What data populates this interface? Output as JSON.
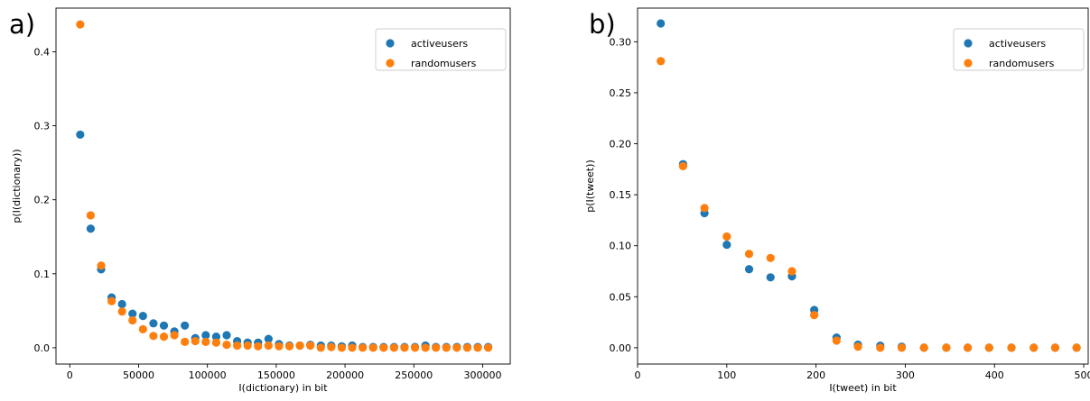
{
  "chart_data": [
    {
      "type": "scatter",
      "panel_label": "a)",
      "xlabel": "I(dictionary) in bit",
      "ylabel": "p(I(dictionary))",
      "xlim": [
        -10000,
        320000
      ],
      "ylim": [
        -0.022,
        0.459
      ],
      "xticks": [
        0,
        50000,
        100000,
        150000,
        200000,
        250000,
        300000
      ],
      "xtick_labels": [
        "0",
        "50000",
        "100000",
        "150000",
        "200000",
        "250000",
        "300000"
      ],
      "yticks": [
        0.0,
        0.1,
        0.2,
        0.3,
        0.4
      ],
      "ytick_labels": [
        "0.0",
        "0.1",
        "0.2",
        "0.3",
        "0.4"
      ],
      "legend_position": "top-right",
      "grid": false,
      "series": [
        {
          "name": "activeusers",
          "color": "#1f77b4",
          "points": [
            [
              7600,
              0.288
            ],
            [
              15200,
              0.161
            ],
            [
              22800,
              0.106
            ],
            [
              30400,
              0.068
            ],
            [
              38000,
              0.059
            ],
            [
              45600,
              0.046
            ],
            [
              53200,
              0.043
            ],
            [
              60800,
              0.033
            ],
            [
              68400,
              0.03
            ],
            [
              76000,
              0.022
            ],
            [
              83600,
              0.03
            ],
            [
              91200,
              0.013
            ],
            [
              98800,
              0.017
            ],
            [
              106400,
              0.015
            ],
            [
              114000,
              0.017
            ],
            [
              121600,
              0.009
            ],
            [
              129200,
              0.007
            ],
            [
              136800,
              0.007
            ],
            [
              144400,
              0.012
            ],
            [
              152000,
              0.005
            ],
            [
              159600,
              0.003
            ],
            [
              167200,
              0.003
            ],
            [
              174800,
              0.004
            ],
            [
              182400,
              0.003
            ],
            [
              190000,
              0.003
            ],
            [
              197600,
              0.002
            ],
            [
              205200,
              0.003
            ],
            [
              212800,
              0.001
            ],
            [
              220400,
              0.001
            ],
            [
              228000,
              0.001
            ],
            [
              235600,
              0.001
            ],
            [
              243200,
              0.001
            ],
            [
              250800,
              0.001
            ],
            [
              258400,
              0.003
            ],
            [
              266000,
              0.001
            ],
            [
              273600,
              0.001
            ],
            [
              281200,
              0.001
            ],
            [
              288800,
              0.001
            ],
            [
              296400,
              0.001
            ],
            [
              304000,
              0.001
            ]
          ]
        },
        {
          "name": "randomusers",
          "color": "#ff7f0e",
          "points": [
            [
              7600,
              0.437
            ],
            [
              15200,
              0.179
            ],
            [
              22800,
              0.111
            ],
            [
              30400,
              0.063
            ],
            [
              38000,
              0.049
            ],
            [
              45600,
              0.037
            ],
            [
              53200,
              0.025
            ],
            [
              60800,
              0.016
            ],
            [
              68400,
              0.015
            ],
            [
              76000,
              0.017
            ],
            [
              83600,
              0.008
            ],
            [
              91200,
              0.009
            ],
            [
              98800,
              0.008
            ],
            [
              106400,
              0.007
            ],
            [
              114000,
              0.004
            ],
            [
              121600,
              0.003
            ],
            [
              129200,
              0.003
            ],
            [
              136800,
              0.002
            ],
            [
              144400,
              0.003
            ],
            [
              152000,
              0.002
            ],
            [
              159600,
              0.002
            ],
            [
              167200,
              0.003
            ],
            [
              174800,
              0.003
            ],
            [
              182400,
              0.0
            ],
            [
              190000,
              0.001
            ],
            [
              197600,
              0.0
            ],
            [
              205200,
              0.0
            ],
            [
              212800,
              0.0
            ],
            [
              220400,
              0.0
            ],
            [
              228000,
              0.0
            ],
            [
              235600,
              0.0
            ],
            [
              243200,
              0.0
            ],
            [
              250800,
              0.0
            ],
            [
              258400,
              0.0
            ],
            [
              266000,
              0.0
            ],
            [
              273600,
              0.0
            ],
            [
              281200,
              0.0
            ],
            [
              288800,
              0.0
            ],
            [
              296400,
              0.0
            ],
            [
              304000,
              0.0
            ]
          ]
        }
      ]
    },
    {
      "type": "scatter",
      "panel_label": "b)",
      "xlabel": "I(tweet) in bit",
      "ylabel": "p(I(tweet))",
      "xlim": [
        0,
        505
      ],
      "ylim": [
        -0.016,
        0.333
      ],
      "xticks": [
        0,
        100,
        200,
        300,
        400,
        500
      ],
      "xtick_labels": [
        "0",
        "100",
        "200",
        "300",
        "400",
        "500"
      ],
      "yticks": [
        0.0,
        0.05,
        0.1,
        0.15,
        0.2,
        0.25,
        0.3
      ],
      "ytick_labels": [
        "0.00",
        "0.05",
        "0.10",
        "0.15",
        "0.20",
        "0.25",
        "0.30"
      ],
      "legend_position": "top-right",
      "grid": false,
      "series": [
        {
          "name": "activeusers",
          "color": "#1f77b4",
          "points": [
            [
              26,
              0.318
            ],
            [
              51,
              0.18
            ],
            [
              75,
              0.132
            ],
            [
              100,
              0.101
            ],
            [
              125,
              0.077
            ],
            [
              149,
              0.069
            ],
            [
              173,
              0.07
            ],
            [
              198,
              0.037
            ],
            [
              223,
              0.01
            ],
            [
              247,
              0.003
            ],
            [
              272,
              0.002
            ],
            [
              296,
              0.001
            ],
            [
              321,
              0.0
            ],
            [
              346,
              0.0
            ],
            [
              370,
              0.0
            ],
            [
              394,
              0.0
            ],
            [
              419,
              0.0
            ],
            [
              444,
              0.0
            ],
            [
              468,
              0.0
            ],
            [
              492,
              0.0
            ]
          ]
        },
        {
          "name": "randomusers",
          "color": "#ff7f0e",
          "points": [
            [
              26,
              0.281
            ],
            [
              51,
              0.178
            ],
            [
              75,
              0.137
            ],
            [
              100,
              0.109
            ],
            [
              125,
              0.092
            ],
            [
              149,
              0.088
            ],
            [
              173,
              0.075
            ],
            [
              198,
              0.032
            ],
            [
              223,
              0.007
            ],
            [
              247,
              0.001
            ],
            [
              272,
              0.0
            ],
            [
              296,
              0.0
            ],
            [
              321,
              0.0
            ],
            [
              346,
              0.0
            ],
            [
              370,
              0.0
            ],
            [
              394,
              0.0
            ],
            [
              419,
              0.0
            ],
            [
              444,
              0.0
            ],
            [
              468,
              0.0
            ],
            [
              492,
              0.0
            ]
          ]
        }
      ]
    }
  ]
}
